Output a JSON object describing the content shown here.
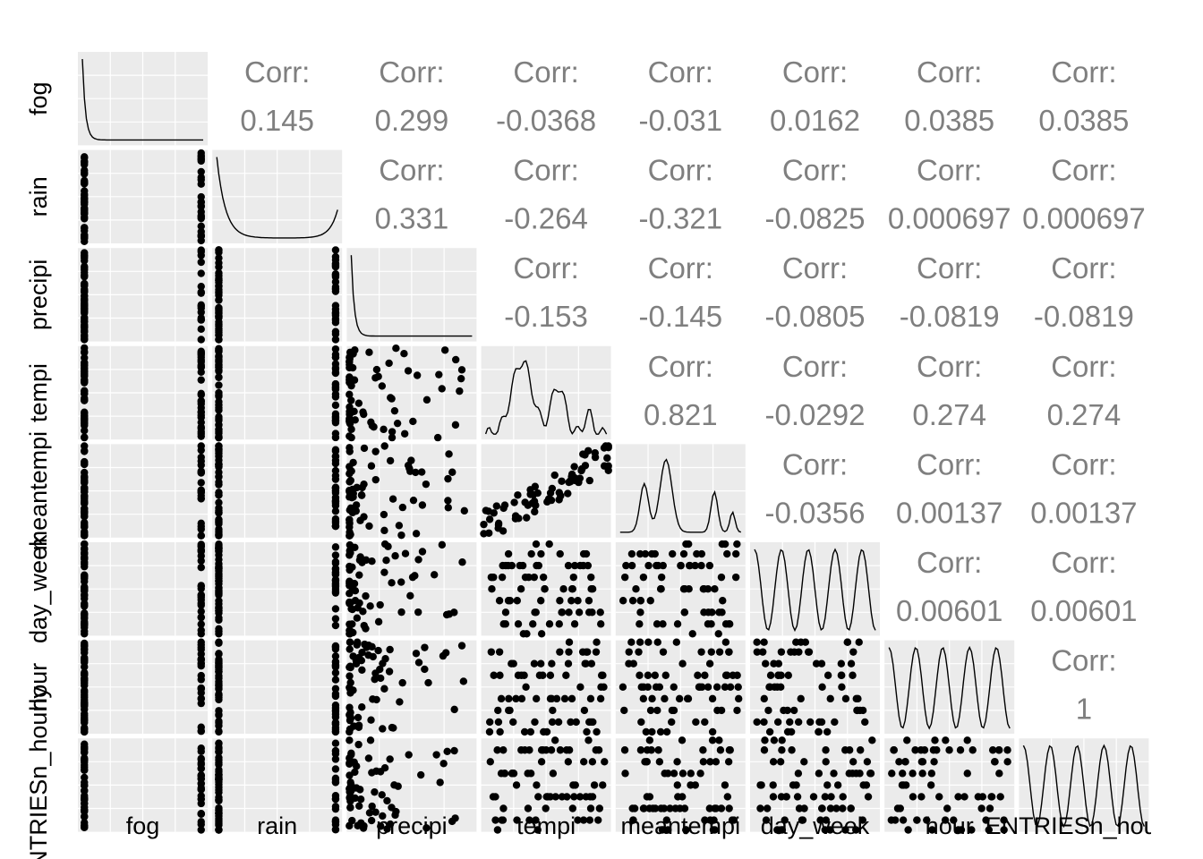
{
  "chart_data": {
    "type": "scatter",
    "variables": [
      "fog",
      "rain",
      "precipi",
      "tempi",
      "meantempi",
      "day_week",
      "hour",
      "ENTRIESn_hourly"
    ],
    "x_labels": [
      "fog",
      "rain",
      "precipi",
      "tempi",
      "meantempi",
      "day_week",
      "hour",
      "ENTRIESn_hourly"
    ],
    "y_labels": [
      "fog",
      "rain",
      "precipi",
      "tempi",
      "meantempi",
      "day_week",
      "hour",
      "ENTRIESn_hourly"
    ],
    "corr_label": "Corr:",
    "correlations": [
      {
        "row": 0,
        "col": 1,
        "value": "0.145"
      },
      {
        "row": 0,
        "col": 2,
        "value": "0.299"
      },
      {
        "row": 0,
        "col": 3,
        "value": "-0.0368"
      },
      {
        "row": 0,
        "col": 4,
        "value": "-0.031"
      },
      {
        "row": 0,
        "col": 5,
        "value": "0.0162"
      },
      {
        "row": 0,
        "col": 6,
        "value": "0.0385"
      },
      {
        "row": 0,
        "col": 7,
        "value": "0.0385"
      },
      {
        "row": 1,
        "col": 2,
        "value": "0.331"
      },
      {
        "row": 1,
        "col": 3,
        "value": "-0.264"
      },
      {
        "row": 1,
        "col": 4,
        "value": "-0.321"
      },
      {
        "row": 1,
        "col": 5,
        "value": "-0.0825"
      },
      {
        "row": 1,
        "col": 6,
        "value": "0.000697"
      },
      {
        "row": 1,
        "col": 7,
        "value": "0.000697"
      },
      {
        "row": 2,
        "col": 3,
        "value": "-0.153"
      },
      {
        "row": 2,
        "col": 4,
        "value": "-0.145"
      },
      {
        "row": 2,
        "col": 5,
        "value": "-0.0805"
      },
      {
        "row": 2,
        "col": 6,
        "value": "-0.0819"
      },
      {
        "row": 2,
        "col": 7,
        "value": "-0.0819"
      },
      {
        "row": 3,
        "col": 4,
        "value": "0.821"
      },
      {
        "row": 3,
        "col": 5,
        "value": "-0.0292"
      },
      {
        "row": 3,
        "col": 6,
        "value": "0.274"
      },
      {
        "row": 3,
        "col": 7,
        "value": "0.274"
      },
      {
        "row": 4,
        "col": 5,
        "value": "-0.0356"
      },
      {
        "row": 4,
        "col": 6,
        "value": "0.00137"
      },
      {
        "row": 4,
        "col": 7,
        "value": "0.00137"
      },
      {
        "row": 5,
        "col": 6,
        "value": "0.00601"
      },
      {
        "row": 5,
        "col": 7,
        "value": "0.00601"
      },
      {
        "row": 6,
        "col": 7,
        "value": "1"
      }
    ],
    "grid": true,
    "legend": "none"
  }
}
